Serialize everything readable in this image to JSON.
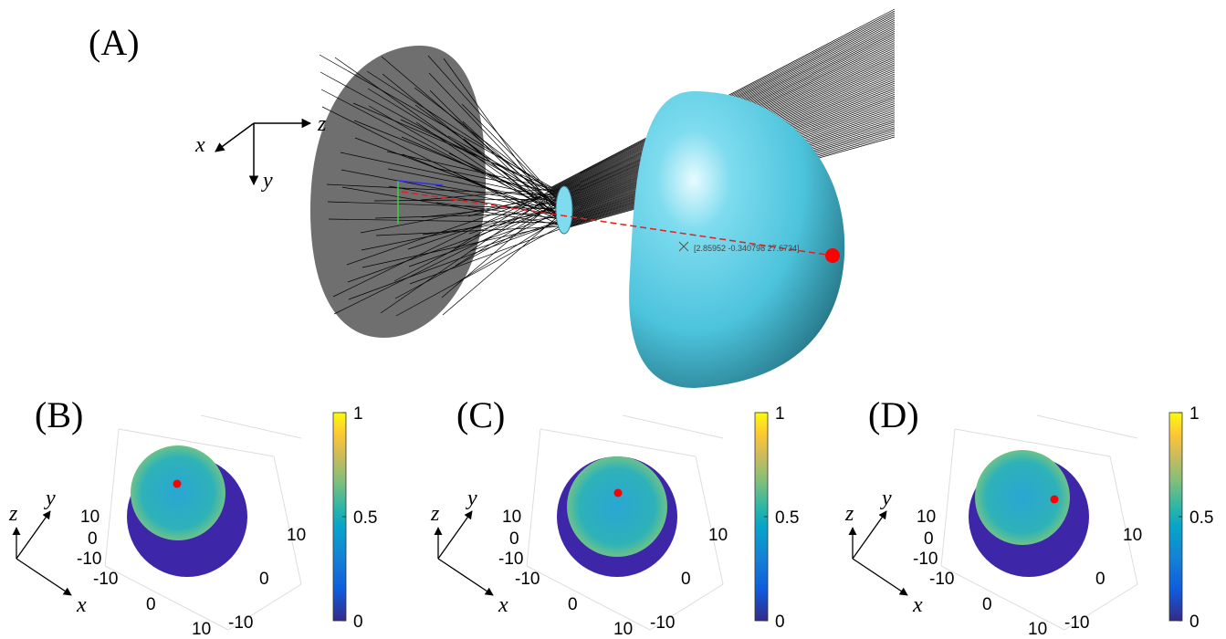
{
  "panels": [
    {
      "label": "(A)",
      "axes": {
        "x": "x",
        "y": "y",
        "z": "z"
      },
      "annotation": "[2.85952 -0.340798 27.6734]"
    },
    {
      "label": "(B)",
      "axes": {
        "x": "x",
        "y": "y",
        "z": "z"
      },
      "left_ticks": [
        "10",
        "0",
        "-10"
      ],
      "bottom_ticks": [
        "-10",
        "0",
        "10"
      ],
      "right_ticks": [
        "10",
        "0",
        "-10"
      ],
      "colorbar_ticks": [
        "1",
        "0.5",
        "0"
      ]
    },
    {
      "label": "(C)",
      "axes": {
        "x": "x",
        "y": "y",
        "z": "z"
      },
      "left_ticks": [
        "10",
        "0",
        "-10"
      ],
      "bottom_ticks": [
        "-10",
        "0",
        "10"
      ],
      "right_ticks": [
        "10",
        "0",
        "-10"
      ],
      "colorbar_ticks": [
        "1",
        "0.5",
        "0"
      ]
    },
    {
      "label": "(D)",
      "axes": {
        "x": "x",
        "y": "y",
        "z": "z"
      },
      "left_ticks": [
        "10",
        "0",
        "-10"
      ],
      "bottom_ticks": [
        "-10",
        "0",
        "10"
      ],
      "right_ticks": [
        "10",
        "0",
        "-10"
      ],
      "colorbar_ticks": [
        "1",
        "0.5",
        "0"
      ]
    }
  ]
}
